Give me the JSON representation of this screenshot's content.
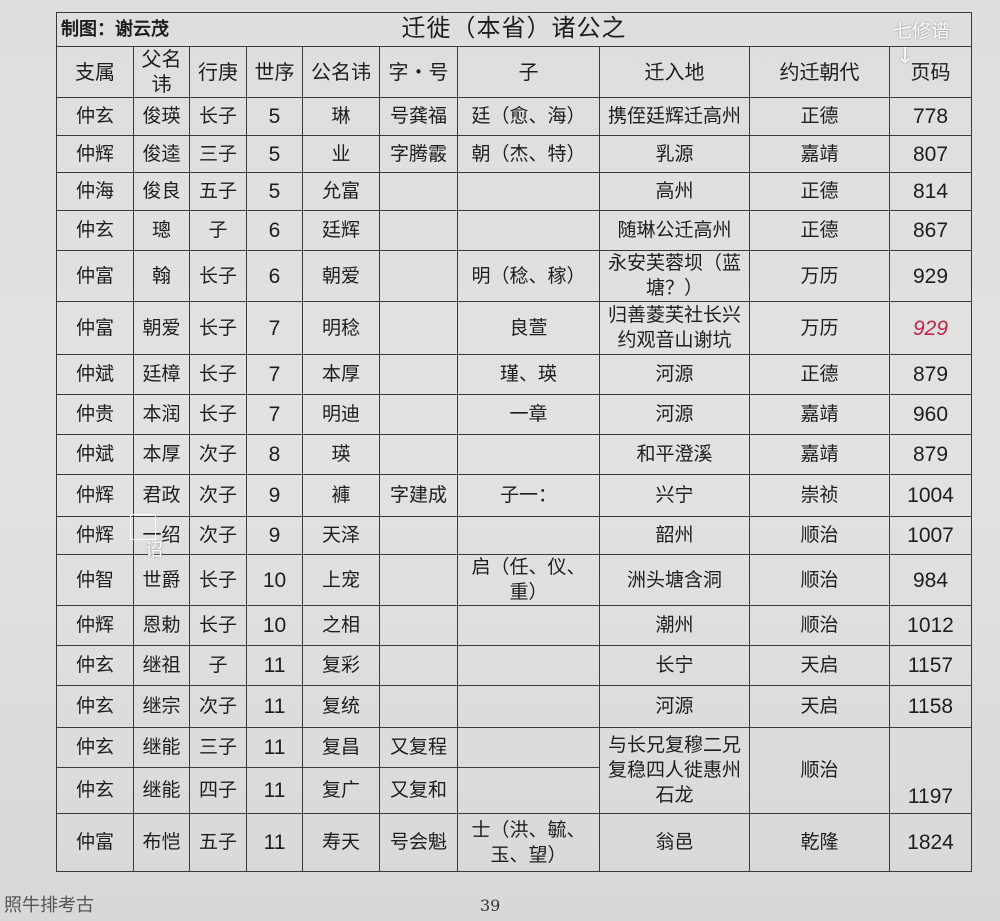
{
  "header": {
    "maker": "制图：谢云茂",
    "title": "迁徙（本省）诸公之",
    "note": "七修谱",
    "note_arrow": "↓"
  },
  "columns": [
    "支属",
    "父名讳",
    "行庚",
    "世序",
    "公名讳",
    "字・号",
    "子",
    "迁入地",
    "约迁朝代",
    "页码"
  ],
  "rows": [
    [
      "仲玄",
      "俊瑛",
      "长子",
      "5",
      "琳",
      "号龚福",
      "廷（愈、海）",
      "携侄廷辉迁高州",
      "正德",
      "778"
    ],
    [
      "仲辉",
      "俊逵",
      "三子",
      "5",
      "业",
      "字腾霰",
      "朝（杰、特）",
      "乳源",
      "嘉靖",
      "807"
    ],
    [
      "仲海",
      "俊良",
      "五子",
      "5",
      "允富",
      "",
      "",
      "高州",
      "正德",
      "814"
    ],
    [
      "仲玄",
      "璁",
      "子",
      "6",
      "廷辉",
      "",
      "",
      "随琳公迁高州",
      "正德",
      "867"
    ],
    [
      "仲富",
      "翰",
      "长子",
      "6",
      "朝爱",
      "",
      "明（稔、稼）",
      "永安芙蓉坝（蓝塘？）",
      "万历",
      "929"
    ],
    [
      "仲富",
      "朝爱",
      "长子",
      "7",
      "明稔",
      "",
      "良萱",
      "归善菱芙社长兴约观音山谢坑",
      "万历",
      "929"
    ],
    [
      "仲斌",
      "廷樟",
      "长子",
      "7",
      "本厚",
      "",
      "瑾、瑛",
      "河源",
      "正德",
      "879"
    ],
    [
      "仲贵",
      "本润",
      "长子",
      "7",
      "明迪",
      "",
      "一章",
      "河源",
      "嘉靖",
      "960"
    ],
    [
      "仲斌",
      "本厚",
      "次子",
      "8",
      "瑛",
      "",
      "",
      "和平澄溪",
      "嘉靖",
      "879"
    ],
    [
      "仲辉",
      "君政",
      "次子",
      "9",
      "褲",
      "字建成",
      "子一：",
      "兴宁",
      "崇祯",
      "1004"
    ],
    [
      "仲辉",
      "一绍",
      "次子",
      "9",
      "天泽",
      "",
      "",
      "韶州",
      "顺治",
      "1007"
    ],
    [
      "仲智",
      "世爵",
      "长子",
      "10",
      "上宠",
      "",
      "启（任、仪、重）",
      "洲头塘含洞",
      "顺治",
      "984"
    ],
    [
      "仲辉",
      "恩勅",
      "长子",
      "10",
      "之相",
      "",
      "",
      "潮州",
      "顺治",
      "1012"
    ],
    [
      "仲玄",
      "继祖",
      "子",
      "11",
      "复彩",
      "",
      "",
      "长宁",
      "天启",
      "1157"
    ],
    [
      "仲玄",
      "继宗",
      "次子",
      "11",
      "复统",
      "",
      "",
      "河源",
      "天启",
      "1158"
    ],
    [
      "仲玄",
      "继能",
      "三子",
      "11",
      "复昌",
      "又复程",
      "",
      "与长兄复穆二兄复稳四人徙惠州石龙",
      "顺治",
      "1197"
    ],
    [
      "仲玄",
      "继能",
      "四子",
      "11",
      "复广",
      "又复和",
      ""
    ],
    [
      "仲富",
      "布恺",
      "五子",
      "11",
      "寿天",
      "号会魁",
      "士（洪、毓、玉、望）",
      "翁邑",
      "乾隆",
      "1824"
    ]
  ],
  "annotation_correction": "诏",
  "handwritten_rows": [
    5
  ],
  "footer": {
    "watermark": "照牛排考古",
    "page_number": "39"
  }
}
